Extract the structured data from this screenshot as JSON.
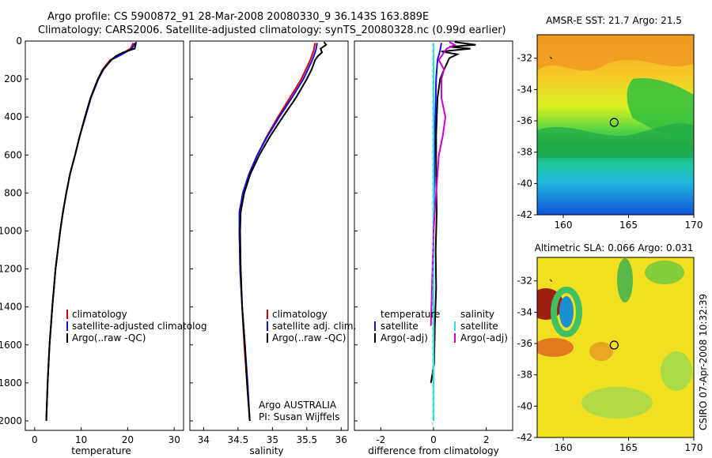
{
  "title": {
    "line1": "Argo profile: CS 5900872_91 28-Mar-2008 20080330_9 36.143S 163.889E",
    "line2": "Climatology: CARS2006. Satellite-adjusted climatology: synTS_20080328.nc (0.99d earlier)"
  },
  "colors": {
    "red": "#e00000",
    "blue": "#1010e0",
    "black": "#000000",
    "cyan": "#20e8e8",
    "magenta": "#d000d0"
  },
  "chart_data": [
    {
      "type": "line",
      "id": "temperature",
      "xlabel": "temperature",
      "ylim": [
        2050,
        0
      ],
      "xlim": [
        -2,
        32
      ],
      "xticks": [
        "0",
        "10",
        "20",
        "30"
      ],
      "xtick_values": [
        0,
        10,
        20,
        30
      ],
      "yticks": [
        "0",
        "200",
        "400",
        "600",
        "800",
        "1000",
        "1200",
        "1400",
        "1600",
        "1800",
        "2000"
      ],
      "ytick_values": [
        0,
        200,
        400,
        600,
        800,
        1000,
        1200,
        1400,
        1600,
        1800,
        2000
      ],
      "legend": [
        "climatology",
        "satellite-adjusted climatolog",
        "Argo(..raw -QC)"
      ],
      "series": [
        {
          "name": "climatology",
          "color": "red",
          "depth": [
            10,
            40,
            70,
            100,
            150,
            200,
            300,
            400,
            500,
            600,
            700,
            800,
            900,
            1000,
            1200,
            1400,
            1600,
            1800,
            2000
          ],
          "values": [
            21.2,
            20.6,
            18.5,
            16.2,
            14.6,
            13.6,
            12.0,
            10.9,
            9.7,
            8.7,
            7.6,
            6.8,
            6.1,
            5.5,
            4.5,
            3.8,
            3.2,
            2.8,
            2.5
          ]
        },
        {
          "name": "satellite-adjusted climatology",
          "color": "blue",
          "depth": [
            10,
            40,
            70,
            100,
            150,
            200,
            300,
            400,
            500,
            600,
            700,
            800,
            900,
            1000,
            1200,
            1400,
            1600,
            1800,
            2000
          ],
          "values": [
            21.6,
            20.9,
            18.8,
            16.4,
            14.8,
            13.7,
            12.1,
            10.9,
            9.7,
            8.7,
            7.6,
            6.8,
            6.1,
            5.5,
            4.5,
            3.8,
            3.2,
            2.8,
            2.5
          ]
        },
        {
          "name": "Argo(..raw -QC)",
          "color": "black",
          "depth": [
            5,
            20,
            40,
            60,
            80,
            100,
            150,
            200,
            300,
            400,
            500,
            600,
            700,
            800,
            900,
            1000,
            1200,
            1400,
            1600,
            1800,
            2000
          ],
          "values": [
            21.8,
            21.7,
            21.5,
            19.0,
            17.4,
            16.5,
            14.7,
            13.6,
            12.0,
            10.8,
            9.7,
            8.7,
            7.6,
            6.8,
            6.1,
            5.5,
            4.5,
            3.8,
            3.2,
            2.8,
            2.5
          ]
        }
      ]
    },
    {
      "type": "line",
      "id": "salinity",
      "xlabel": "salinity",
      "ylim": [
        2050,
        0
      ],
      "xlim": [
        33.8,
        36.1
      ],
      "xticks": [
        "34",
        "34.5",
        "35",
        "35.5",
        "36"
      ],
      "xtick_values": [
        34,
        34.5,
        35,
        35.5,
        36
      ],
      "legend": [
        "climatology",
        "satellite adj. clim.",
        "Argo(..raw -QC)"
      ],
      "annotation": [
        "Argo AUSTRALIA",
        "PI: Susan Wijffels"
      ],
      "series": [
        {
          "name": "climatology",
          "color": "red",
          "depth": [
            10,
            50,
            100,
            200,
            300,
            400,
            500,
            600,
            700,
            800,
            900,
            1000,
            1200,
            1400,
            1600,
            1800,
            2000
          ],
          "values": [
            35.62,
            35.6,
            35.55,
            35.42,
            35.25,
            35.08,
            34.92,
            34.78,
            34.66,
            34.57,
            34.53,
            34.52,
            34.53,
            34.56,
            34.59,
            34.63,
            34.67
          ]
        },
        {
          "name": "satellite adj. clim.",
          "color": "blue",
          "depth": [
            10,
            50,
            100,
            200,
            300,
            400,
            500,
            600,
            700,
            800,
            900,
            1000,
            1200,
            1400,
            1600,
            1800,
            2000
          ],
          "values": [
            35.65,
            35.63,
            35.58,
            35.45,
            35.28,
            35.1,
            34.93,
            34.78,
            34.66,
            34.57,
            34.52,
            34.52,
            34.53,
            34.56,
            34.6,
            34.64,
            34.67
          ]
        },
        {
          "name": "Argo(..raw -QC)",
          "color": "black",
          "depth": [
            5,
            20,
            40,
            60,
            80,
            100,
            150,
            200,
            300,
            400,
            500,
            600,
            700,
            800,
            900,
            1000,
            1200,
            1400,
            1600,
            1800,
            2000
          ],
          "values": [
            35.75,
            35.78,
            35.7,
            35.72,
            35.66,
            35.62,
            35.57,
            35.5,
            35.34,
            35.15,
            34.97,
            34.81,
            34.68,
            34.59,
            34.54,
            34.53,
            34.54,
            34.56,
            34.6,
            34.63,
            34.67
          ]
        }
      ]
    },
    {
      "type": "line",
      "id": "difference",
      "xlabel": "difference from climatology",
      "ylim": [
        2050,
        0
      ],
      "xlim": [
        -3,
        3
      ],
      "xticks": [
        "-2",
        "0",
        "2"
      ],
      "xtick_values": [
        -2,
        0,
        2
      ],
      "legend_left_title": "temperature",
      "legend_left": [
        "satellite",
        "Argo(-adj)"
      ],
      "legend_right_title": "salinity",
      "legend_right": [
        "satellite",
        "Argo(-adj)"
      ],
      "series": [
        {
          "name": "temperature satellite",
          "color": "blue",
          "depth": [
            10,
            50,
            100,
            200,
            500,
            1000,
            2000
          ],
          "values": [
            0.3,
            0.25,
            0.15,
            0.1,
            0.05,
            0,
            0
          ]
        },
        {
          "name": "temperature Argo(-adj)",
          "color": "black",
          "depth": [
            5,
            20,
            30,
            40,
            55,
            70,
            90,
            120,
            150,
            200,
            300,
            500,
            700,
            900,
            1100,
            1300,
            1500,
            1700,
            1800
          ],
          "values": [
            0.8,
            1.6,
            0.6,
            1.4,
            0.3,
            0.9,
            0.6,
            0.5,
            0.4,
            0.25,
            0.15,
            0.1,
            0.1,
            0.12,
            0.08,
            0.1,
            0.05,
            0.02,
            -0.1
          ]
        },
        {
          "name": "salinity satellite",
          "color": "cyan",
          "depth": [
            10,
            50,
            100,
            200,
            400,
            800,
            1200,
            1600,
            2000
          ],
          "values": [
            0,
            0,
            0,
            0,
            0,
            0,
            0,
            0,
            0
          ]
        },
        {
          "name": "salinity Argo(-adj)",
          "color": "magenta",
          "depth": [
            5,
            20,
            40,
            60,
            80,
            100,
            150,
            200,
            300,
            400,
            500,
            600,
            800,
            1000,
            1500
          ],
          "values": [
            0.6,
            0.8,
            0.5,
            0.4,
            0.3,
            0.2,
            0.4,
            0.3,
            0.3,
            0.45,
            0.35,
            0.2,
            0.1,
            0,
            -0.1
          ]
        }
      ]
    },
    {
      "type": "heatmap",
      "id": "sst-map",
      "title": "AMSR-E SST: 21.7 Argo: 21.5",
      "xlim": [
        158,
        170
      ],
      "ylim": [
        -42,
        -30.5
      ],
      "xticks": [
        "160",
        "165",
        "170"
      ],
      "xtick_values": [
        160,
        165,
        170
      ],
      "yticks": [
        "-32",
        "-34",
        "-36",
        "-38",
        "-40",
        "-42"
      ],
      "ytick_values": [
        -32,
        -34,
        -36,
        -38,
        -40,
        -42
      ],
      "marker": {
        "lon": 163.9,
        "lat": -36.1
      }
    },
    {
      "type": "heatmap",
      "id": "sla-map",
      "title": "Altimetric SLA: 0.066 Argo: 0.031",
      "xlim": [
        158,
        170
      ],
      "ylim": [
        -42,
        -30.5
      ],
      "xticks": [
        "160",
        "165",
        "170"
      ],
      "xtick_values": [
        160,
        165,
        170
      ],
      "yticks": [
        "-32",
        "-34",
        "-36",
        "-38",
        "-40",
        "-42"
      ],
      "ytick_values": [
        -32,
        -34,
        -36,
        -38,
        -40,
        -42
      ],
      "marker": {
        "lon": 163.9,
        "lat": -36.1
      }
    }
  ],
  "footer": {
    "credit": "CSIRO 07-Apr-2008 10:32:39"
  }
}
